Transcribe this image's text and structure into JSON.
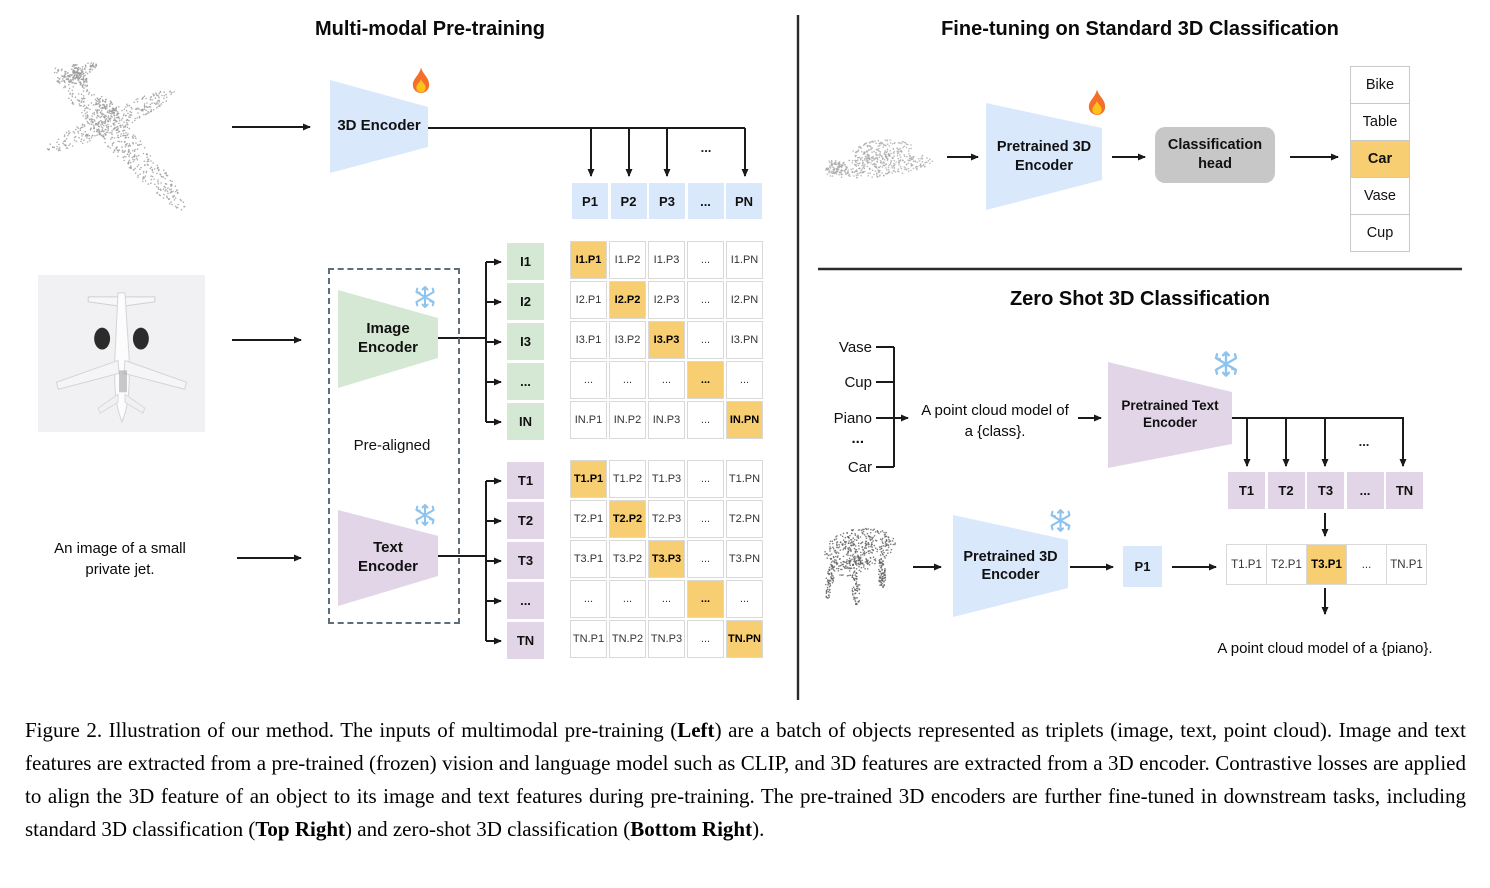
{
  "colors": {
    "blue": "#dae8fc",
    "green": "#d5e8d4",
    "purple": "#e1d5e7",
    "orange": "#f8ce72",
    "head_gray": "#c7c7c7"
  },
  "pretraining": {
    "title": "Multi-modal Pre-training",
    "encoder_3d": {
      "label": "3D Encoder",
      "icon": "fire-icon"
    },
    "image_encoder": {
      "label": "Image Encoder",
      "icon": "snowflake-icon"
    },
    "text_encoder": {
      "label": "Text Encoder",
      "icon": "snowflake-icon"
    },
    "pre_aligned": "Pre-aligned",
    "text_prompt": "An image of a small private jet.",
    "ellipsis": "...",
    "p_cells": [
      "P1",
      "P2",
      "P3",
      "...",
      "PN"
    ],
    "i_cells": [
      "I1",
      "I2",
      "I3",
      "...",
      "IN"
    ],
    "t_cells": [
      "T1",
      "T2",
      "T3",
      "...",
      "TN"
    ],
    "image_matrix": [
      [
        "I1.P1",
        "I1.P2",
        "I1.P3",
        "...",
        "I1.PN"
      ],
      [
        "I2.P1",
        "I2.P2",
        "I2.P3",
        "...",
        "I2.PN"
      ],
      [
        "I3.P1",
        "I3.P2",
        "I3.P3",
        "...",
        "I3.PN"
      ],
      [
        "...",
        "...",
        "...",
        "...",
        "..."
      ],
      [
        "IN.P1",
        "IN.P2",
        "IN.P3",
        "...",
        "IN.PN"
      ]
    ],
    "text_matrix": [
      [
        "T1.P1",
        "T1.P2",
        "T1.P3",
        "...",
        "T1.PN"
      ],
      [
        "T2.P1",
        "T2.P2",
        "T2.P3",
        "...",
        "T2.PN"
      ],
      [
        "T3.P1",
        "T3.P2",
        "T3.P3",
        "...",
        "T3.PN"
      ],
      [
        "...",
        "...",
        "...",
        "...",
        "..."
      ],
      [
        "TN.P1",
        "TN.P2",
        "TN.P3",
        "...",
        "TN.PN"
      ]
    ]
  },
  "finetune": {
    "title": "Fine-tuning on Standard 3D Classification",
    "encoder": "Pretrained 3D Encoder",
    "encoder_icon": "fire-icon",
    "head": "Classification head",
    "classes": [
      "Bike",
      "Table",
      "Car",
      "Vase",
      "Cup"
    ],
    "predicted": "Car"
  },
  "zeroshot": {
    "title": "Zero Shot 3D Classification",
    "classes": [
      "Vase",
      "Cup",
      "Piano",
      "...",
      "Car"
    ],
    "prompt": "A point cloud model of a {class}.",
    "text_encoder": "Pretrained Text Encoder",
    "text_encoder_icon": "snowflake-icon",
    "encoder_3d": "Pretrained 3D Encoder",
    "encoder_3d_icon": "snowflake-icon",
    "p_cell": "P1",
    "t_cells": [
      "T1",
      "T2",
      "T3",
      "...",
      "TN"
    ],
    "match_row": [
      "T1.P1",
      "T2.P1",
      "T3.P1",
      "...",
      "TN.P1"
    ],
    "match_highlight_index": 2,
    "ellipsis": "...",
    "result": "A point cloud model of a {piano}."
  },
  "caption": {
    "label": "Figure 2.",
    "segments": [
      {
        "text": "Figure 2. Illustration of our method. The inputs of multimodal pre-training (",
        "bold": false
      },
      {
        "text": "Left",
        "bold": true
      },
      {
        "text": ") are a batch of objects represented as triplets (image, text, point cloud). Image and text features are extracted from a pre-trained (frozen) vision and language model such as CLIP, and 3D features are extracted from a 3D encoder. Contrastive losses are applied to align the 3D feature of an object to its image and text features during pre-training. The pre-trained 3D encoders are further fine-tuned in downstream tasks, including standard 3D classification (",
        "bold": false
      },
      {
        "text": "Top Right",
        "bold": true
      },
      {
        "text": ") and zero-shot 3D classification (",
        "bold": false
      },
      {
        "text": "Bottom Right",
        "bold": true
      },
      {
        "text": ").",
        "bold": false
      }
    ]
  }
}
